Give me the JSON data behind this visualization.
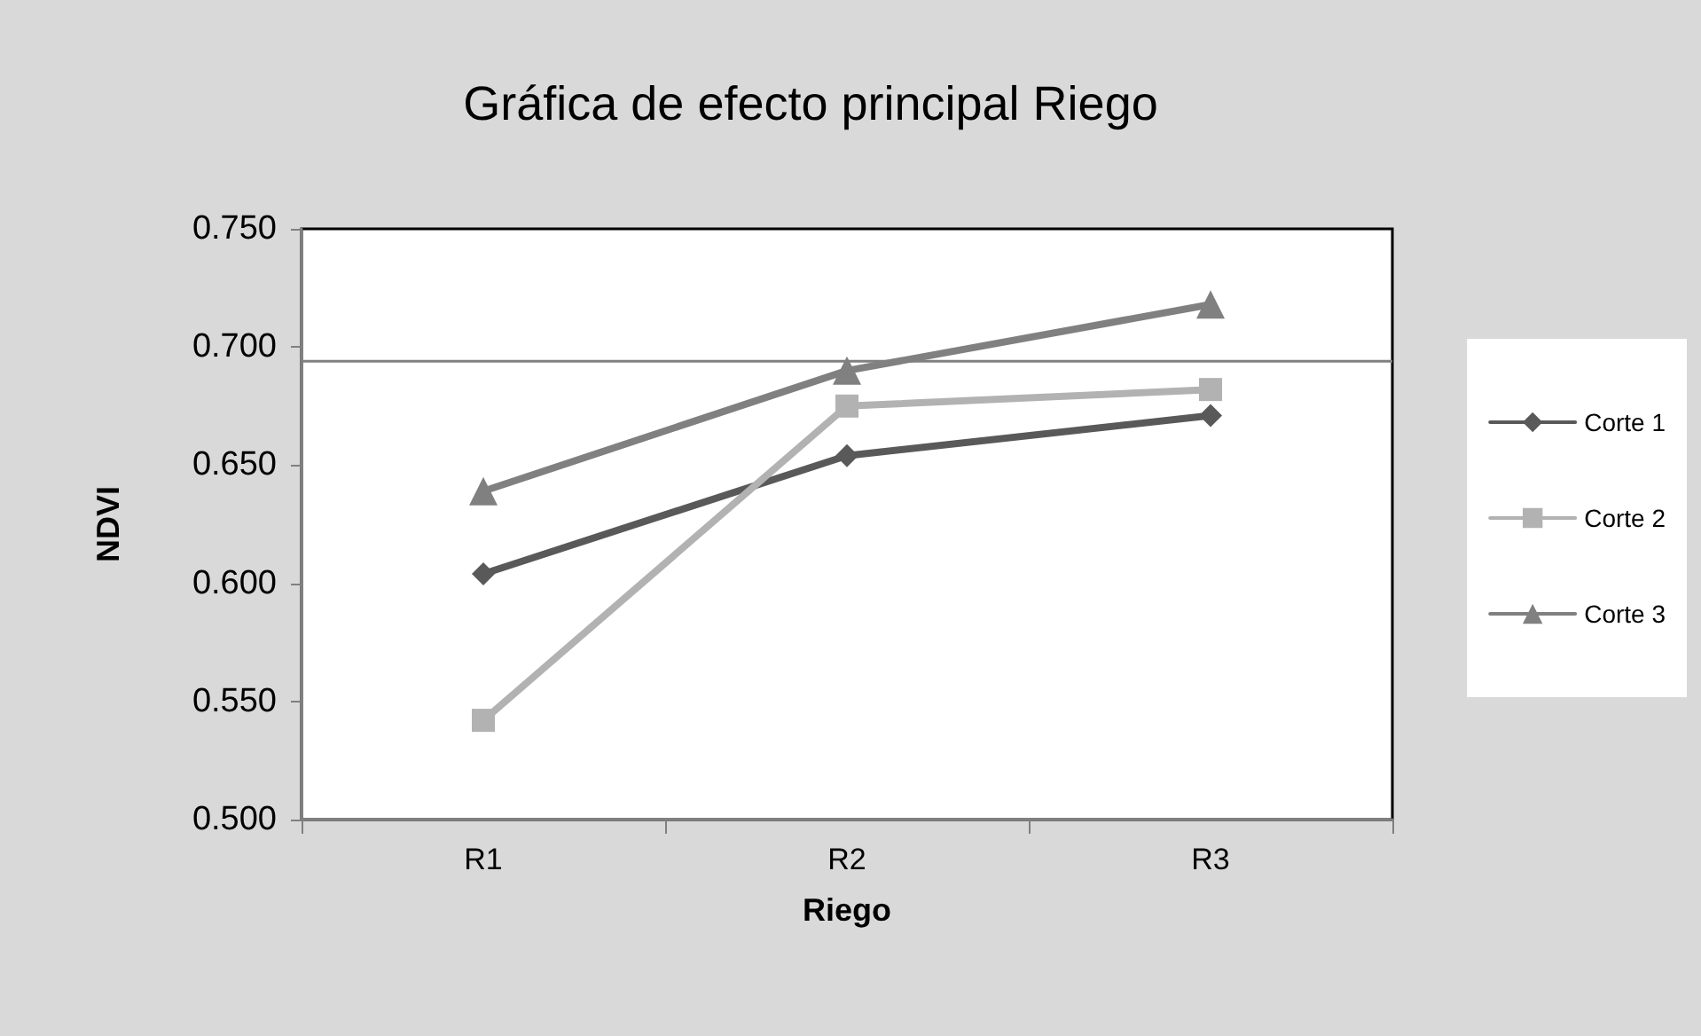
{
  "chart_data": {
    "type": "line",
    "title": "Gráfica de efecto principal Riego",
    "xlabel": "Riego",
    "ylabel": "NDVI",
    "categories": [
      "R1",
      "R2",
      "R3"
    ],
    "series": [
      {
        "name": "Corte 1",
        "color": "#595959",
        "marker": "diamond",
        "values": [
          0.604,
          0.654,
          0.671
        ]
      },
      {
        "name": "Corte 2",
        "color": "#b2b2b2",
        "marker": "square",
        "values": [
          0.542,
          0.675,
          0.682
        ]
      },
      {
        "name": "Corte 3",
        "color": "#808080",
        "marker": "triangle",
        "values": [
          0.639,
          0.69,
          0.718
        ]
      }
    ],
    "ylim": [
      0.5,
      0.75
    ],
    "yticks": [
      {
        "value": 0.5,
        "label": "0.500"
      },
      {
        "value": 0.55,
        "label": "0.550"
      },
      {
        "value": 0.6,
        "label": "0.600"
      },
      {
        "value": 0.65,
        "label": "0.650"
      },
      {
        "value": 0.7,
        "label": "0.700"
      },
      {
        "value": 0.75,
        "label": "0.750"
      }
    ],
    "ref_lines": [
      {
        "axis": "y",
        "value": 0.694,
        "color": "#808080"
      }
    ],
    "grid": false,
    "legend": "right",
    "line_style": "solid"
  }
}
